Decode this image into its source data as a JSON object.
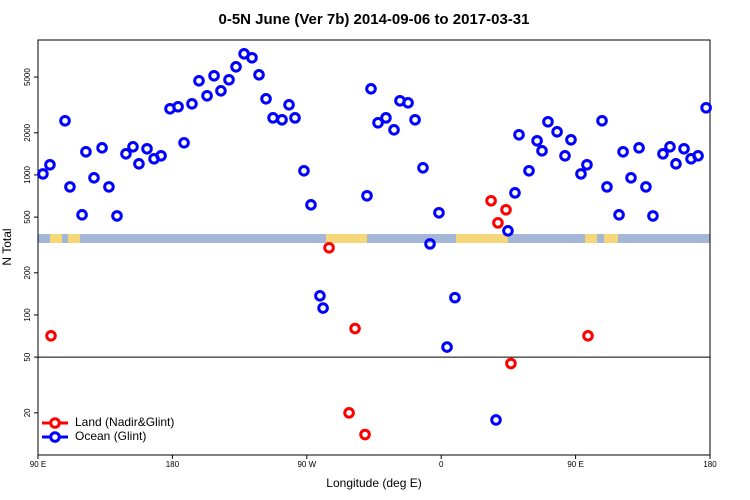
{
  "chart_data": {
    "type": "scatter",
    "title": "0-5N June (Ver 7b)   2014-09-06 to 2017-03-31",
    "xlabel": "Longitude (deg E)",
    "ylabel": "N Total",
    "log_y": true,
    "legend": "bottom-left",
    "reference_line": 50,
    "xlim": [
      90,
      540
    ],
    "xticks": [
      {
        "value": 90,
        "label": "90 E"
      },
      180,
      {
        "value": 270,
        "label": "90 W"
      },
      {
        "value": 360,
        "label": "0"
      },
      {
        "value": 450,
        "label": "90 E"
      },
      {
        "value": 540,
        "label": "180"
      }
    ],
    "ylim": [
      10,
      9200
    ],
    "yticks": [
      20,
      50,
      100,
      200,
      500,
      1000,
      2000,
      5000
    ],
    "series": [
      {
        "name": "Land (Nadir&Glint)",
        "color": "#ff0000",
        "x": [
          98.7,
          284.9,
          298.3,
          302.3,
          309.0,
          393.4,
          398.0,
          403.4,
          406.7,
          458.3
        ],
        "values": [
          71,
          302,
          20,
          80,
          14,
          654,
          455,
          564,
          45,
          71
        ]
      },
      {
        "name": "Ocean (Glint)",
        "color": "#0000ff",
        "x": [
          93.3,
          98.0,
          108.1,
          111.4,
          119.5,
          122.1,
          127.5,
          132.9,
          137.5,
          142.9,
          148.9,
          153.6,
          157.6,
          163.0,
          167.7,
          172.4,
          178.4,
          183.8,
          187.8,
          193.1,
          197.8,
          203.2,
          207.9,
          212.5,
          217.9,
          222.6,
          228.0,
          233.3,
          238.0,
          242.7,
          247.4,
          253.4,
          258.1,
          262.1,
          268.1,
          272.8,
          278.8,
          280.9,
          310.3,
          313.0,
          317.7,
          323.0,
          328.4,
          332.4,
          337.8,
          342.5,
          347.8,
          352.5,
          358.5,
          363.9,
          369.2,
          396.7,
          404.7,
          409.4,
          412.1,
          418.8,
          424.2,
          427.5,
          431.5,
          437.6,
          442.9,
          446.9,
          453.6,
          457.6,
          467.7,
          471.0,
          479.1,
          481.8,
          487.1,
          492.5,
          497.1,
          501.8,
          508.5,
          513.2,
          517.2,
          522.6,
          527.3,
          532.0,
          537.4
        ],
        "values": [
          1018,
          1182,
          2437,
          822,
          519,
          1464,
          954,
          1562,
          822,
          510,
          1416,
          1589,
          1201,
          1538,
          1304,
          1370,
          2969,
          3069,
          1697,
          3222,
          4704,
          3676,
          5108,
          3990,
          4785,
          5920,
          7332,
          6868,
          5190,
          3498,
          2558,
          2478,
          3170,
          2558,
          1071,
          612,
          137,
          112,
          710,
          4124,
          2358,
          2558,
          2100,
          3386,
          3276,
          2478,
          1125,
          322,
          537,
          59,
          133,
          17.8,
          399,
          745,
          1936,
          1071,
          1754,
          1487,
          2398,
          2033,
          1370,
          1783,
          1018,
          1182,
          2437,
          822,
          519,
          1464,
          954,
          1562,
          822,
          510,
          1416,
          1589,
          1201,
          1538,
          1304,
          1370,
          3018
        ]
      }
    ]
  }
}
